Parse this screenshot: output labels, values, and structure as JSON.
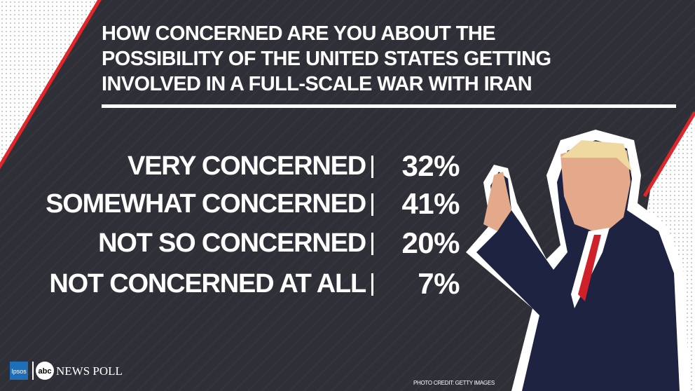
{
  "header": {
    "title_lines": [
      "HOW CONCERNED ARE YOU ABOUT THE",
      "POSSIBILITY OF THE UNITED STATES GETTING",
      "INVOLVED IN A FULL-SCALE WAR WITH IRAN"
    ]
  },
  "results": [
    {
      "label": "VERY CONCERNED",
      "value": "32%"
    },
    {
      "label": "SOMEWHAT CONCERNED",
      "value": "41%"
    },
    {
      "label": "NOT SO CONCERNED",
      "value": "20%"
    },
    {
      "label": "NOT CONCERNED AT ALL",
      "value": "7%"
    }
  ],
  "footer": {
    "ipsos": "Ipsos",
    "abc": "abc",
    "poll": "NEWS POLL",
    "credit": "PHOTO CREDIT: GETTY IMAGES"
  }
}
